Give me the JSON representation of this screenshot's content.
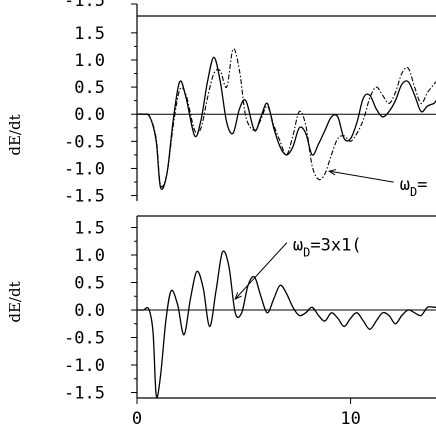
{
  "chart_data": [
    {
      "type": "line",
      "title": "",
      "xlabel": "",
      "ylabel": "dE/dt",
      "xlim": [
        0,
        14
      ],
      "ylim": [
        -1.6,
        1.7
      ],
      "ytick_labels": [
        "1.5",
        "1.0",
        "0.5",
        "0.0",
        "-0.5",
        "-1.0",
        "-1.5"
      ],
      "ytick_values": [
        1.5,
        1.0,
        0.5,
        0.0,
        -0.5,
        -1.0,
        -1.5
      ],
      "top_partial_tick_label": "-1.5",
      "annotation": {
        "text": "ω",
        "sub": "D",
        "suffix": "=",
        "at": [
          9.0,
          -1.05
        ],
        "text_at": [
          12.3,
          -1.4
        ]
      },
      "series": [
        {
          "style": "solid",
          "x": [
            0,
            0.3,
            0.6,
            0.9,
            1.1,
            1.4,
            1.7,
            2.0,
            2.3,
            2.7,
            3.0,
            3.3,
            3.6,
            3.9,
            4.2,
            4.5,
            4.8,
            5.1,
            5.5,
            5.8,
            6.1,
            6.4,
            6.7,
            7.0,
            7.3,
            7.6,
            7.9,
            8.2,
            8.5,
            8.8,
            9.1,
            9.4,
            9.7,
            10.0,
            10.3,
            10.6,
            10.9,
            11.2,
            11.5,
            11.8,
            12.1,
            12.4,
            12.7,
            13.0,
            13.3,
            13.6,
            13.9,
            14.0
          ],
          "y": [
            0,
            0,
            -0.05,
            -0.5,
            -1.35,
            -1.1,
            -0.1,
            0.6,
            0.3,
            -0.4,
            -0.1,
            0.6,
            1.05,
            0.6,
            -0.15,
            -0.35,
            0.1,
            0.25,
            -0.3,
            -0.05,
            0.2,
            -0.25,
            -0.6,
            -0.75,
            -0.6,
            -0.25,
            -0.35,
            -0.75,
            -0.55,
            -0.3,
            -0.05,
            -0.05,
            -0.45,
            -0.45,
            -0.15,
            0.3,
            0.35,
            0.1,
            -0.05,
            0.05,
            0.25,
            0.55,
            0.6,
            0.35,
            0.05,
            0.15,
            0.2,
            0.25
          ]
        },
        {
          "style": "dash-dot",
          "x": [
            0,
            0.3,
            0.6,
            0.9,
            1.1,
            1.4,
            1.7,
            2.0,
            2.3,
            2.7,
            3.0,
            3.3,
            3.6,
            3.9,
            4.2,
            4.5,
            4.8,
            5.1,
            5.5,
            5.8,
            6.1,
            6.4,
            6.7,
            7.0,
            7.3,
            7.6,
            7.9,
            8.2,
            8.5,
            8.8,
            9.1,
            9.4,
            9.7,
            10.0,
            10.3,
            10.6,
            10.9,
            11.2,
            11.5,
            11.8,
            12.1,
            12.4,
            12.7,
            13.0,
            13.3,
            13.6,
            13.9,
            14.0
          ],
          "y": [
            0,
            0,
            -0.05,
            -0.45,
            -1.3,
            -1.1,
            -0.2,
            0.45,
            0.35,
            -0.3,
            -0.25,
            0.3,
            0.75,
            0.8,
            0.5,
            1.2,
            0.8,
            -0.05,
            -0.3,
            -0.1,
            0.15,
            -0.2,
            -0.5,
            -0.75,
            -0.4,
            0.05,
            -0.2,
            -0.95,
            -1.2,
            -1.1,
            -0.75,
            -0.45,
            -0.4,
            -0.5,
            -0.35,
            -0.1,
            0.3,
            0.5,
            0.35,
            0.2,
            0.4,
            0.75,
            0.85,
            0.5,
            0.2,
            0.4,
            0.55,
            0.6
          ]
        }
      ]
    },
    {
      "type": "line",
      "title": "",
      "xlabel": "",
      "ylabel": "dE/dt",
      "xlim": [
        0,
        14
      ],
      "ylim": [
        -1.6,
        1.6
      ],
      "ytick_labels": [
        "1.5",
        "1.0",
        "0.5",
        "0.0",
        "-0.5",
        "-1.0",
        "-1.5"
      ],
      "ytick_values": [
        1.5,
        1.0,
        0.5,
        0.0,
        -0.5,
        -1.0,
        -1.5
      ],
      "xtick_labels": [
        "0",
        "10"
      ],
      "xtick_values": [
        0,
        10
      ],
      "annotation": {
        "text": "ω",
        "sub": "D",
        "suffix": "=3x1(",
        "at": [
          4.6,
          0.2
        ],
        "text_at": [
          7.3,
          1.08
        ]
      },
      "series": [
        {
          "style": "solid",
          "x": [
            0,
            0.3,
            0.55,
            0.75,
            0.9,
            1.1,
            1.35,
            1.6,
            1.9,
            2.2,
            2.5,
            2.8,
            3.1,
            3.4,
            3.7,
            4.0,
            4.3,
            4.6,
            4.9,
            5.2,
            5.5,
            5.8,
            6.1,
            6.4,
            6.7,
            7.0,
            7.3,
            7.6,
            7.9,
            8.2,
            8.5,
            8.8,
            9.1,
            9.4,
            9.7,
            10.0,
            10.3,
            10.6,
            10.9,
            11.2,
            11.5,
            11.8,
            12.1,
            12.4,
            12.7,
            13.0,
            13.3,
            13.6,
            13.9,
            14.0
          ],
          "y": [
            0,
            0,
            0.02,
            -0.4,
            -1.55,
            -1.2,
            -0.2,
            0.35,
            0.1,
            -0.45,
            0.2,
            0.7,
            0.4,
            -0.3,
            0.35,
            1.05,
            0.8,
            -0.05,
            -0.05,
            0.45,
            0.6,
            0.25,
            -0.05,
            0.2,
            0.45,
            0.3,
            0.05,
            -0.1,
            -0.05,
            0.05,
            -0.1,
            -0.2,
            -0.05,
            -0.15,
            -0.3,
            -0.15,
            -0.05,
            -0.2,
            -0.35,
            -0.2,
            -0.05,
            -0.1,
            -0.25,
            -0.1,
            0.0,
            -0.05,
            -0.1,
            0.05,
            0.05,
            0.05
          ]
        }
      ]
    }
  ]
}
